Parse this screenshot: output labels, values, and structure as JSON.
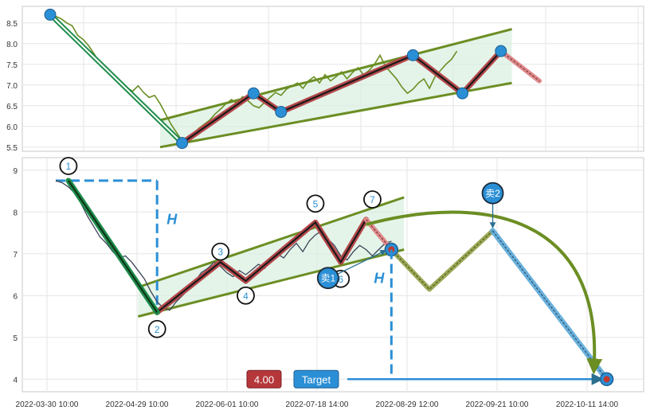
{
  "chart_data": [
    {
      "type": "line",
      "panel": "upper",
      "ylim": [
        5.4,
        8.9
      ],
      "y_ticks": [
        "5.5",
        "6.0",
        "6.5",
        "7.0",
        "7.5",
        "8.0",
        "8.5"
      ],
      "x_gridlines": 7,
      "grid": true,
      "series": [
        {
          "kind": "price-line",
          "color": "#6b8e23",
          "points": [
            [
              0.0,
              8.75
            ],
            [
              0.01,
              8.66
            ],
            [
              0.02,
              8.6
            ],
            [
              0.03,
              8.5
            ],
            [
              0.04,
              8.43
            ],
            [
              0.05,
              8.2
            ],
            [
              0.06,
              8.1
            ],
            [
              0.07,
              7.95
            ],
            [
              0.08,
              7.75
            ],
            [
              0.09,
              7.55
            ],
            [
              0.1,
              7.45
            ],
            [
              0.11,
              7.3
            ],
            [
              0.12,
              7.1
            ],
            [
              0.13,
              7.0
            ],
            [
              0.14,
              6.93
            ],
            [
              0.15,
              6.85
            ],
            [
              0.16,
              6.98
            ],
            [
              0.17,
              6.82
            ],
            [
              0.18,
              6.7
            ],
            [
              0.19,
              6.75
            ],
            [
              0.2,
              6.55
            ],
            [
              0.21,
              6.3
            ],
            [
              0.22,
              6.05
            ],
            [
              0.23,
              5.85
            ],
            [
              0.24,
              5.65
            ],
            [
              0.25,
              5.72
            ],
            [
              0.26,
              5.8
            ],
            [
              0.27,
              5.95
            ],
            [
              0.28,
              6.05
            ],
            [
              0.29,
              6.15
            ],
            [
              0.3,
              6.3
            ],
            [
              0.31,
              6.42
            ],
            [
              0.32,
              6.55
            ],
            [
              0.33,
              6.65
            ],
            [
              0.34,
              6.55
            ],
            [
              0.35,
              6.72
            ],
            [
              0.36,
              6.62
            ],
            [
              0.37,
              6.5
            ],
            [
              0.38,
              6.45
            ],
            [
              0.39,
              6.58
            ],
            [
              0.4,
              6.7
            ],
            [
              0.41,
              6.82
            ],
            [
              0.42,
              6.75
            ],
            [
              0.43,
              6.9
            ],
            [
              0.44,
              6.98
            ],
            [
              0.45,
              7.05
            ],
            [
              0.46,
              6.92
            ],
            [
              0.47,
              7.1
            ],
            [
              0.48,
              7.2
            ],
            [
              0.49,
              7.05
            ],
            [
              0.5,
              7.25
            ],
            [
              0.51,
              7.1
            ],
            [
              0.52,
              7.2
            ],
            [
              0.53,
              7.32
            ],
            [
              0.54,
              7.15
            ],
            [
              0.55,
              7.3
            ],
            [
              0.56,
              7.42
            ],
            [
              0.57,
              7.25
            ],
            [
              0.58,
              7.35
            ],
            [
              0.59,
              7.5
            ],
            [
              0.6,
              7.72
            ],
            [
              0.61,
              7.45
            ],
            [
              0.62,
              7.3
            ],
            [
              0.63,
              7.15
            ],
            [
              0.64,
              6.95
            ],
            [
              0.65,
              6.8
            ],
            [
              0.66,
              6.9
            ],
            [
              0.67,
              7.05
            ],
            [
              0.68,
              7.15
            ],
            [
              0.69,
              6.92
            ],
            [
              0.7,
              7.2
            ],
            [
              0.71,
              7.35
            ],
            [
              0.72,
              7.5
            ],
            [
              0.73,
              7.62
            ],
            [
              0.74,
              7.82
            ]
          ]
        },
        {
          "kind": "wave",
          "color": "#b5484b",
          "points": [
            [
              0.24,
              5.6
            ],
            [
              0.37,
              6.8
            ],
            [
              0.42,
              6.35
            ],
            [
              0.66,
              7.72
            ],
            [
              0.75,
              6.8
            ],
            [
              0.82,
              7.82
            ]
          ]
        },
        {
          "kind": "projection",
          "color": "#e08a8c",
          "points": [
            [
              0.82,
              7.82
            ],
            [
              0.89,
              7.1
            ]
          ]
        },
        {
          "kind": "impulse",
          "color": "#1e8c4a",
          "points": [
            [
              0.0,
              8.7
            ],
            [
              0.24,
              5.6
            ]
          ]
        }
      ],
      "channel": {
        "upper": [
          [
            0.2,
            6.15
          ],
          [
            0.84,
            8.35
          ]
        ],
        "lower": [
          [
            0.2,
            5.5
          ],
          [
            0.84,
            7.05
          ]
        ]
      },
      "pivots": [
        [
          0.0,
          8.7
        ],
        [
          0.24,
          5.6
        ],
        [
          0.37,
          6.8
        ],
        [
          0.42,
          6.35
        ],
        [
          0.66,
          7.72
        ],
        [
          0.75,
          6.8
        ],
        [
          0.82,
          7.82
        ]
      ]
    },
    {
      "type": "line",
      "panel": "lower",
      "ylim": [
        3.7,
        9.3
      ],
      "y_ticks": [
        "4",
        "5",
        "6",
        "7",
        "8",
        "9"
      ],
      "x_ticks": [
        "2022-03-30 10:00",
        "2022-04-29 10:00",
        "2022-06-01 10:00",
        "2022-07-18 14:00",
        "2022-08-29 12:00",
        "2022-09-21 10:00",
        "2022-10-11 14:00"
      ],
      "grid": true,
      "series": [
        {
          "kind": "price-line",
          "color": "#3c4458",
          "points": [
            [
              0.0,
              8.75
            ],
            [
              0.01,
              8.7
            ],
            [
              0.02,
              8.6
            ],
            [
              0.03,
              8.45
            ],
            [
              0.04,
              8.2
            ],
            [
              0.05,
              7.9
            ],
            [
              0.06,
              7.65
            ],
            [
              0.07,
              7.4
            ],
            [
              0.08,
              7.25
            ],
            [
              0.09,
              7.05
            ],
            [
              0.1,
              6.9
            ],
            [
              0.11,
              6.95
            ],
            [
              0.12,
              6.8
            ],
            [
              0.13,
              6.6
            ],
            [
              0.14,
              6.4
            ],
            [
              0.15,
              6.1
            ],
            [
              0.16,
              5.85
            ],
            [
              0.17,
              5.7
            ],
            [
              0.18,
              5.65
            ],
            [
              0.19,
              5.85
            ],
            [
              0.2,
              6.0
            ],
            [
              0.21,
              6.15
            ],
            [
              0.22,
              6.35
            ],
            [
              0.23,
              6.55
            ],
            [
              0.24,
              6.65
            ],
            [
              0.25,
              6.8
            ],
            [
              0.26,
              6.7
            ],
            [
              0.27,
              6.55
            ],
            [
              0.28,
              6.45
            ],
            [
              0.29,
              6.6
            ],
            [
              0.3,
              6.5
            ],
            [
              0.31,
              6.62
            ],
            [
              0.32,
              6.75
            ],
            [
              0.33,
              6.65
            ],
            [
              0.34,
              6.9
            ],
            [
              0.35,
              7.0
            ],
            [
              0.36,
              6.9
            ],
            [
              0.37,
              7.1
            ],
            [
              0.38,
              7.25
            ],
            [
              0.39,
              7.05
            ],
            [
              0.4,
              7.3
            ],
            [
              0.41,
              7.45
            ],
            [
              0.42,
              7.55
            ],
            [
              0.43,
              7.35
            ],
            [
              0.44,
              7.2
            ],
            [
              0.45,
              6.95
            ],
            [
              0.46,
              6.85
            ],
            [
              0.47,
              7.05
            ],
            [
              0.48,
              7.2
            ],
            [
              0.49,
              7.1
            ],
            [
              0.5,
              6.95
            ],
            [
              0.51,
              7.1
            ],
            [
              0.52,
              7.25
            ],
            [
              0.53,
              7.3
            ]
          ]
        },
        {
          "kind": "wave",
          "color": "#b5484b",
          "points": [
            [
              0.16,
              5.6
            ],
            [
              0.26,
              6.8
            ],
            [
              0.3,
              6.35
            ],
            [
              0.41,
              7.75
            ],
            [
              0.45,
              6.8
            ],
            [
              0.49,
              7.82
            ]
          ]
        },
        {
          "kind": "projection",
          "color": "#e08a8c",
          "points": [
            [
              0.49,
              7.82
            ],
            [
              0.53,
              7.1
            ]
          ]
        },
        {
          "kind": "projection-zigzag",
          "color": "#8a9a3a",
          "points": [
            [
              0.53,
              7.1
            ],
            [
              0.59,
              6.15
            ],
            [
              0.69,
              7.55
            ]
          ]
        },
        {
          "kind": "target-path",
          "color": "#5aa9d8",
          "points": [
            [
              0.69,
              7.55
            ],
            [
              0.87,
              4.0
            ]
          ]
        },
        {
          "kind": "impulse",
          "color": "#1e8c4a",
          "points": [
            [
              0.02,
              8.75
            ],
            [
              0.16,
              5.6
            ]
          ]
        }
      ],
      "channel": {
        "upper": [
          [
            0.13,
            6.2
          ],
          [
            0.55,
            8.35
          ]
        ],
        "lower": [
          [
            0.13,
            5.5
          ],
          [
            0.55,
            7.1
          ]
        ]
      },
      "labels": [
        {
          "text": "1",
          "x": 0.02,
          "y": 9.1
        },
        {
          "text": "2",
          "x": 0.16,
          "y": 5.2
        },
        {
          "text": "3",
          "x": 0.26,
          "y": 7.05
        },
        {
          "text": "4",
          "x": 0.3,
          "y": 6.0
        },
        {
          "text": "5",
          "x": 0.41,
          "y": 8.2
        },
        {
          "text": "6",
          "x": 0.45,
          "y": 6.4
        },
        {
          "text": "7",
          "x": 0.5,
          "y": 8.3
        }
      ],
      "markers": {
        "sell1": {
          "text": "卖1",
          "x": 0.43,
          "y": 6.42
        },
        "sell2": {
          "text": "卖2",
          "x": 0.69,
          "y": 8.45
        },
        "h_label": "H",
        "target_value": "4.00",
        "target_label": "Target"
      },
      "target_y": 4.0,
      "arc_end": [
        0.85,
        4.3
      ]
    }
  ]
}
